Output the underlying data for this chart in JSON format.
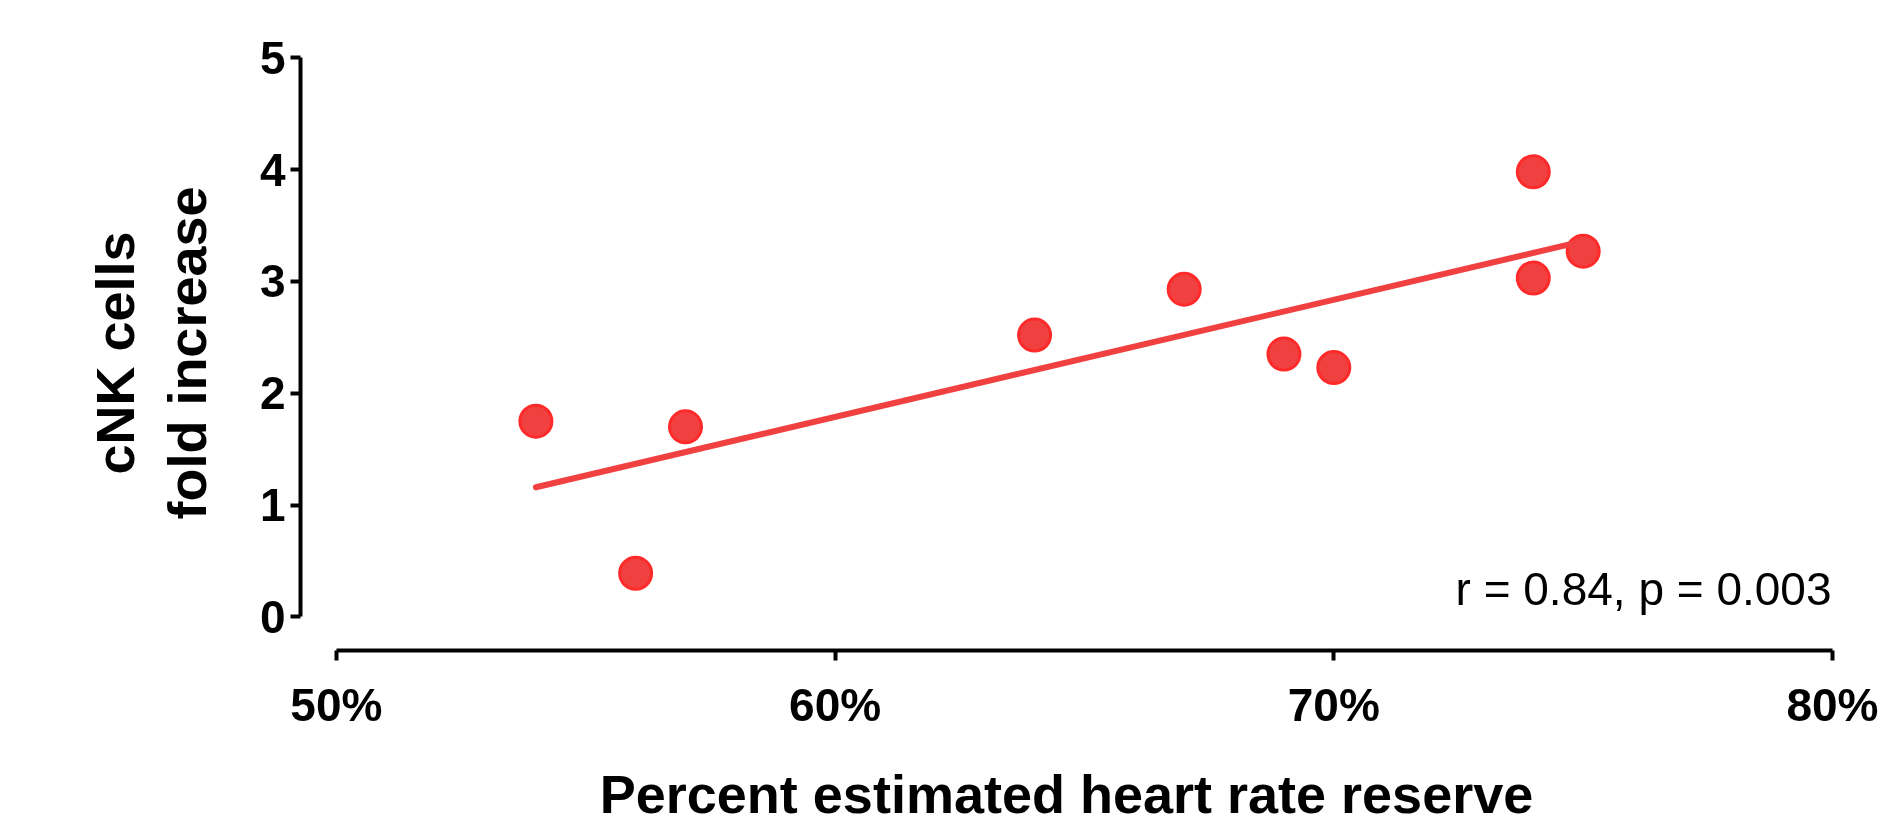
{
  "chart_data": {
    "type": "scatter",
    "xlabel": "Percent estimated heart rate reserve",
    "ylabel": "cNK cells\nfold increase",
    "x": [
      54,
      56,
      57,
      64,
      67,
      69,
      70,
      74,
      74,
      75
    ],
    "series": [
      {
        "color": "#f04040",
        "marker": "circle",
        "values": [
          1.75,
          0.39,
          1.7,
          2.52,
          2.93,
          2.35,
          2.23,
          3.98,
          3.03,
          3.27
        ]
      },
      {
        "type": "line",
        "color": "#f04040",
        "x": [
          54,
          75
        ],
        "values": [
          1.16,
          3.36
        ]
      }
    ],
    "line_style": "solid",
    "grid": false,
    "xlim": [
      50,
      80
    ],
    "ylim": [
      0,
      5
    ],
    "xticks": [
      {
        "value": 50,
        "label": "50%"
      },
      {
        "value": 60,
        "label": "60%"
      },
      {
        "value": 70,
        "label": "70%"
      },
      {
        "value": 80,
        "label": "80%"
      }
    ],
    "yticks": [
      0,
      1,
      2,
      3,
      4,
      5
    ],
    "annotations": [
      "r = 0.84, p = 0.003"
    ]
  }
}
